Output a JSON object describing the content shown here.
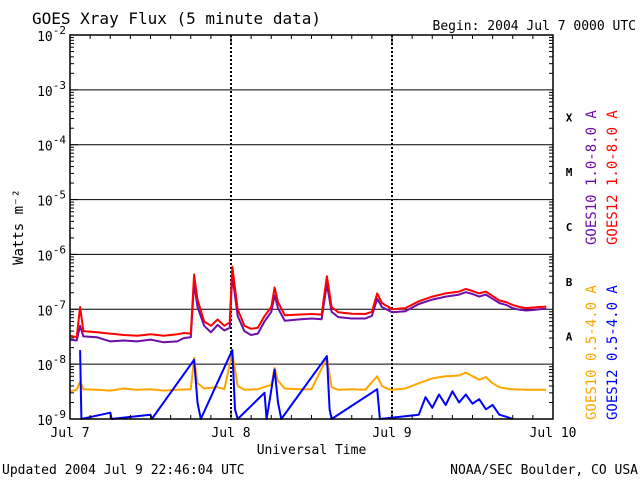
{
  "header": {
    "title": "GOES Xray Flux (5 minute data)",
    "begin_label": "Begin:  2004 Jul 7 0000 UTC"
  },
  "footer": {
    "updated": "Updated 2004 Jul  9 22:46:04 UTC",
    "credit": "NOAA/SEC Boulder, CO USA"
  },
  "chart_data": {
    "type": "line",
    "title": "GOES Xray Flux (5 minute data)",
    "xlabel": "Universal Time",
    "ylabel": "Watts m⁻²",
    "x_unit": "hours since 2004 Jul 7 0000 UTC",
    "xlim": [
      0,
      72
    ],
    "y_scale": "log",
    "ylim": [
      1e-09,
      0.01
    ],
    "x_ticks": [
      {
        "x": 0,
        "label": "Jul 7"
      },
      {
        "x": 24,
        "label": "Jul 8"
      },
      {
        "x": 48,
        "label": "Jul 9"
      },
      {
        "x": 72,
        "label": "Jul 10"
      }
    ],
    "y_ticks": [
      {
        "value": 0.01,
        "base": "10",
        "exp": "-2"
      },
      {
        "value": 0.001,
        "base": "10",
        "exp": "-3"
      },
      {
        "value": 0.0001,
        "base": "10",
        "exp": "-4"
      },
      {
        "value": 1e-05,
        "base": "10",
        "exp": "-5"
      },
      {
        "value": 1e-06,
        "base": "10",
        "exp": "-6"
      },
      {
        "value": 1e-07,
        "base": "10",
        "exp": "-7"
      },
      {
        "value": 1e-08,
        "base": "10",
        "exp": "-8"
      },
      {
        "value": 1e-09,
        "base": "10",
        "exp": "-9"
      }
    ],
    "flare_classes": [
      {
        "label": "X",
        "level": 0.0001
      },
      {
        "label": "M",
        "level": 1e-05
      },
      {
        "label": "C",
        "level": 1e-06
      },
      {
        "label": "B",
        "level": 1e-07
      },
      {
        "label": "A",
        "level": 1e-08
      }
    ],
    "grid": true,
    "legend_position": "right",
    "series": [
      {
        "name": "GOES10 1.0-8.0 A",
        "color": "#6b0fa8",
        "points": [
          [
            0,
            2.8e-08
          ],
          [
            1,
            2.7e-08
          ],
          [
            1.5,
            5e-08
          ],
          [
            2,
            3.2e-08
          ],
          [
            4,
            3.1e-08
          ],
          [
            6,
            2.6e-08
          ],
          [
            8,
            2.7e-08
          ],
          [
            10,
            2.6e-08
          ],
          [
            12,
            2.8e-08
          ],
          [
            14,
            2.5e-08
          ],
          [
            16,
            2.6e-08
          ],
          [
            17,
            3e-08
          ],
          [
            18,
            3.1e-08
          ],
          [
            18.5,
            3e-07
          ],
          [
            19,
            1.1e-07
          ],
          [
            20,
            5e-08
          ],
          [
            21,
            3.8e-08
          ],
          [
            22,
            5.2e-08
          ],
          [
            23,
            4.1e-08
          ],
          [
            23.8,
            4.6e-08
          ],
          [
            24.2,
            4.2e-07
          ],
          [
            25,
            7.5e-08
          ],
          [
            26,
            4e-08
          ],
          [
            27,
            3.4e-08
          ],
          [
            28,
            3.6e-08
          ],
          [
            29,
            6e-08
          ],
          [
            30,
            9e-08
          ],
          [
            30.5,
            1.8e-07
          ],
          [
            31,
            1.05e-07
          ],
          [
            32,
            6.2e-08
          ],
          [
            34,
            6.5e-08
          ],
          [
            36,
            6.8e-08
          ],
          [
            37.5,
            6.6e-08
          ],
          [
            38.3,
            2.9e-07
          ],
          [
            39,
            9e-08
          ],
          [
            40,
            7.2e-08
          ],
          [
            42,
            6.8e-08
          ],
          [
            44,
            6.8e-08
          ],
          [
            45,
            7.6e-08
          ],
          [
            45.8,
            1.55e-07
          ],
          [
            46.5,
            1.1e-07
          ],
          [
            47.5,
            9.5e-08
          ],
          [
            48,
            8.8e-08
          ],
          [
            50,
            9.2e-08
          ],
          [
            52,
            1.25e-07
          ],
          [
            54,
            1.5e-07
          ],
          [
            56,
            1.7e-07
          ],
          [
            58,
            1.85e-07
          ],
          [
            59,
            2.05e-07
          ],
          [
            60,
            1.9e-07
          ],
          [
            61,
            1.7e-07
          ],
          [
            62,
            1.85e-07
          ],
          [
            63,
            1.55e-07
          ],
          [
            64,
            1.3e-07
          ],
          [
            65,
            1.2e-07
          ],
          [
            66,
            1.05e-07
          ],
          [
            67,
            9.8e-08
          ],
          [
            68,
            9.5e-08
          ],
          [
            69,
            9.7e-08
          ],
          [
            70,
            1e-07
          ],
          [
            71,
            1.02e-07
          ]
        ]
      },
      {
        "name": "GOES12 1.0-8.0 A",
        "color": "#ff0000",
        "points": [
          [
            0,
            3.3e-08
          ],
          [
            1,
            3.1e-08
          ],
          [
            1.5,
            1.1e-07
          ],
          [
            2,
            4e-08
          ],
          [
            4,
            3.8e-08
          ],
          [
            6,
            3.6e-08
          ],
          [
            8,
            3.4e-08
          ],
          [
            10,
            3.3e-08
          ],
          [
            12,
            3.5e-08
          ],
          [
            14,
            3.3e-08
          ],
          [
            16,
            3.5e-08
          ],
          [
            17,
            3.7e-08
          ],
          [
            18,
            3.6e-08
          ],
          [
            18.5,
            4.3e-07
          ],
          [
            19,
            1.5e-07
          ],
          [
            20,
            6e-08
          ],
          [
            21,
            5e-08
          ],
          [
            22,
            6.5e-08
          ],
          [
            23,
            5e-08
          ],
          [
            23.8,
            5.8e-08
          ],
          [
            24.2,
            6e-07
          ],
          [
            25,
            1e-07
          ],
          [
            26,
            5e-08
          ],
          [
            27,
            4.4e-08
          ],
          [
            28,
            4.6e-08
          ],
          [
            29,
            7.5e-08
          ],
          [
            30,
            1.1e-07
          ],
          [
            30.5,
            2.5e-07
          ],
          [
            31,
            1.35e-07
          ],
          [
            32,
            7.8e-08
          ],
          [
            34,
            8e-08
          ],
          [
            36,
            8.2e-08
          ],
          [
            37.5,
            8e-08
          ],
          [
            38.3,
            4e-07
          ],
          [
            39,
            1.1e-07
          ],
          [
            40,
            8.8e-08
          ],
          [
            42,
            8.3e-08
          ],
          [
            44,
            8.2e-08
          ],
          [
            45,
            9e-08
          ],
          [
            45.8,
            1.95e-07
          ],
          [
            46.5,
            1.3e-07
          ],
          [
            47.5,
            1.1e-07
          ],
          [
            48,
            1e-07
          ],
          [
            50,
            1.05e-07
          ],
          [
            52,
            1.4e-07
          ],
          [
            54,
            1.7e-07
          ],
          [
            56,
            1.95e-07
          ],
          [
            58,
            2.1e-07
          ],
          [
            59,
            2.35e-07
          ],
          [
            60,
            2.15e-07
          ],
          [
            61,
            1.95e-07
          ],
          [
            62,
            2.1e-07
          ],
          [
            63,
            1.75e-07
          ],
          [
            64,
            1.45e-07
          ],
          [
            65,
            1.35e-07
          ],
          [
            66,
            1.2e-07
          ],
          [
            67,
            1.1e-07
          ],
          [
            68,
            1.05e-07
          ],
          [
            69,
            1.08e-07
          ],
          [
            70,
            1.1e-07
          ],
          [
            71,
            1.12e-07
          ]
        ]
      },
      {
        "name": "GOES10 0.5-4.0 A",
        "color": "#ffa500",
        "points": [
          [
            0,
            3.2e-09
          ],
          [
            1,
            3.4e-09
          ],
          [
            1.5,
            4.8e-09
          ],
          [
            2,
            3.5e-09
          ],
          [
            4,
            3.4e-09
          ],
          [
            6,
            3.3e-09
          ],
          [
            8,
            3.6e-09
          ],
          [
            10,
            3.4e-09
          ],
          [
            12,
            3.5e-09
          ],
          [
            14,
            3.3e-09
          ],
          [
            16,
            3.4e-09
          ],
          [
            18,
            3.5e-09
          ],
          [
            18.5,
            1.3e-08
          ],
          [
            19,
            4.5e-09
          ],
          [
            20,
            3.6e-09
          ],
          [
            22,
            3.8e-09
          ],
          [
            23,
            3.5e-09
          ],
          [
            24.2,
            1.6e-08
          ],
          [
            25,
            4e-09
          ],
          [
            26,
            3.4e-09
          ],
          [
            28,
            3.5e-09
          ],
          [
            30,
            4.2e-09
          ],
          [
            30.5,
            8.5e-09
          ],
          [
            31,
            5e-09
          ],
          [
            32,
            3.6e-09
          ],
          [
            34,
            3.5e-09
          ],
          [
            36,
            3.5e-09
          ],
          [
            38.3,
            1.3e-08
          ],
          [
            39,
            3.8e-09
          ],
          [
            40,
            3.4e-09
          ],
          [
            42,
            3.5e-09
          ],
          [
            44,
            3.4e-09
          ],
          [
            45.8,
            6e-09
          ],
          [
            46.5,
            4e-09
          ],
          [
            47.5,
            3.5e-09
          ],
          [
            48,
            3.4e-09
          ],
          [
            50,
            3.6e-09
          ],
          [
            52,
            4.5e-09
          ],
          [
            54,
            5.5e-09
          ],
          [
            56,
            6e-09
          ],
          [
            58,
            6.2e-09
          ],
          [
            59,
            7e-09
          ],
          [
            60,
            6e-09
          ],
          [
            61,
            5.2e-09
          ],
          [
            62,
            5.8e-09
          ],
          [
            63,
            4.5e-09
          ],
          [
            64,
            3.8e-09
          ],
          [
            65,
            3.6e-09
          ],
          [
            66,
            3.5e-09
          ],
          [
            68,
            3.4e-09
          ],
          [
            70,
            3.4e-09
          ],
          [
            71,
            3.4e-09
          ]
        ]
      },
      {
        "name": "GOES12 0.5-4.0 A",
        "color": "#0000ff",
        "points": [
          [
            1.5,
            1.8e-08
          ],
          [
            1.7,
            1e-09
          ],
          [
            6,
            1.3e-09
          ],
          [
            6.2,
            1e-09
          ],
          [
            12,
            1.2e-09
          ],
          [
            12.2,
            1e-09
          ],
          [
            18.5,
            1.2e-08
          ],
          [
            19,
            2e-09
          ],
          [
            19.5,
            1e-09
          ],
          [
            24.2,
            1.8e-08
          ],
          [
            24.6,
            1.5e-09
          ],
          [
            25,
            1e-09
          ],
          [
            29,
            3e-09
          ],
          [
            29.3,
            1e-09
          ],
          [
            30.5,
            8e-09
          ],
          [
            31,
            2e-09
          ],
          [
            31.5,
            1e-09
          ],
          [
            38.3,
            1.4e-08
          ],
          [
            38.7,
            1.5e-09
          ],
          [
            39,
            1e-09
          ],
          [
            45.8,
            3.5e-09
          ],
          [
            46.2,
            1e-09
          ],
          [
            52,
            1.2e-09
          ],
          [
            53,
            2.5e-09
          ],
          [
            54,
            1.6e-09
          ],
          [
            55,
            2.8e-09
          ],
          [
            56,
            1.8e-09
          ],
          [
            57,
            3.2e-09
          ],
          [
            58,
            2e-09
          ],
          [
            59,
            2.8e-09
          ],
          [
            60,
            1.9e-09
          ],
          [
            61,
            2.3e-09
          ],
          [
            62,
            1.5e-09
          ],
          [
            63,
            1.8e-09
          ],
          [
            64,
            1.2e-09
          ],
          [
            65,
            1.1e-09
          ],
          [
            66,
            1e-09
          ]
        ]
      }
    ]
  }
}
